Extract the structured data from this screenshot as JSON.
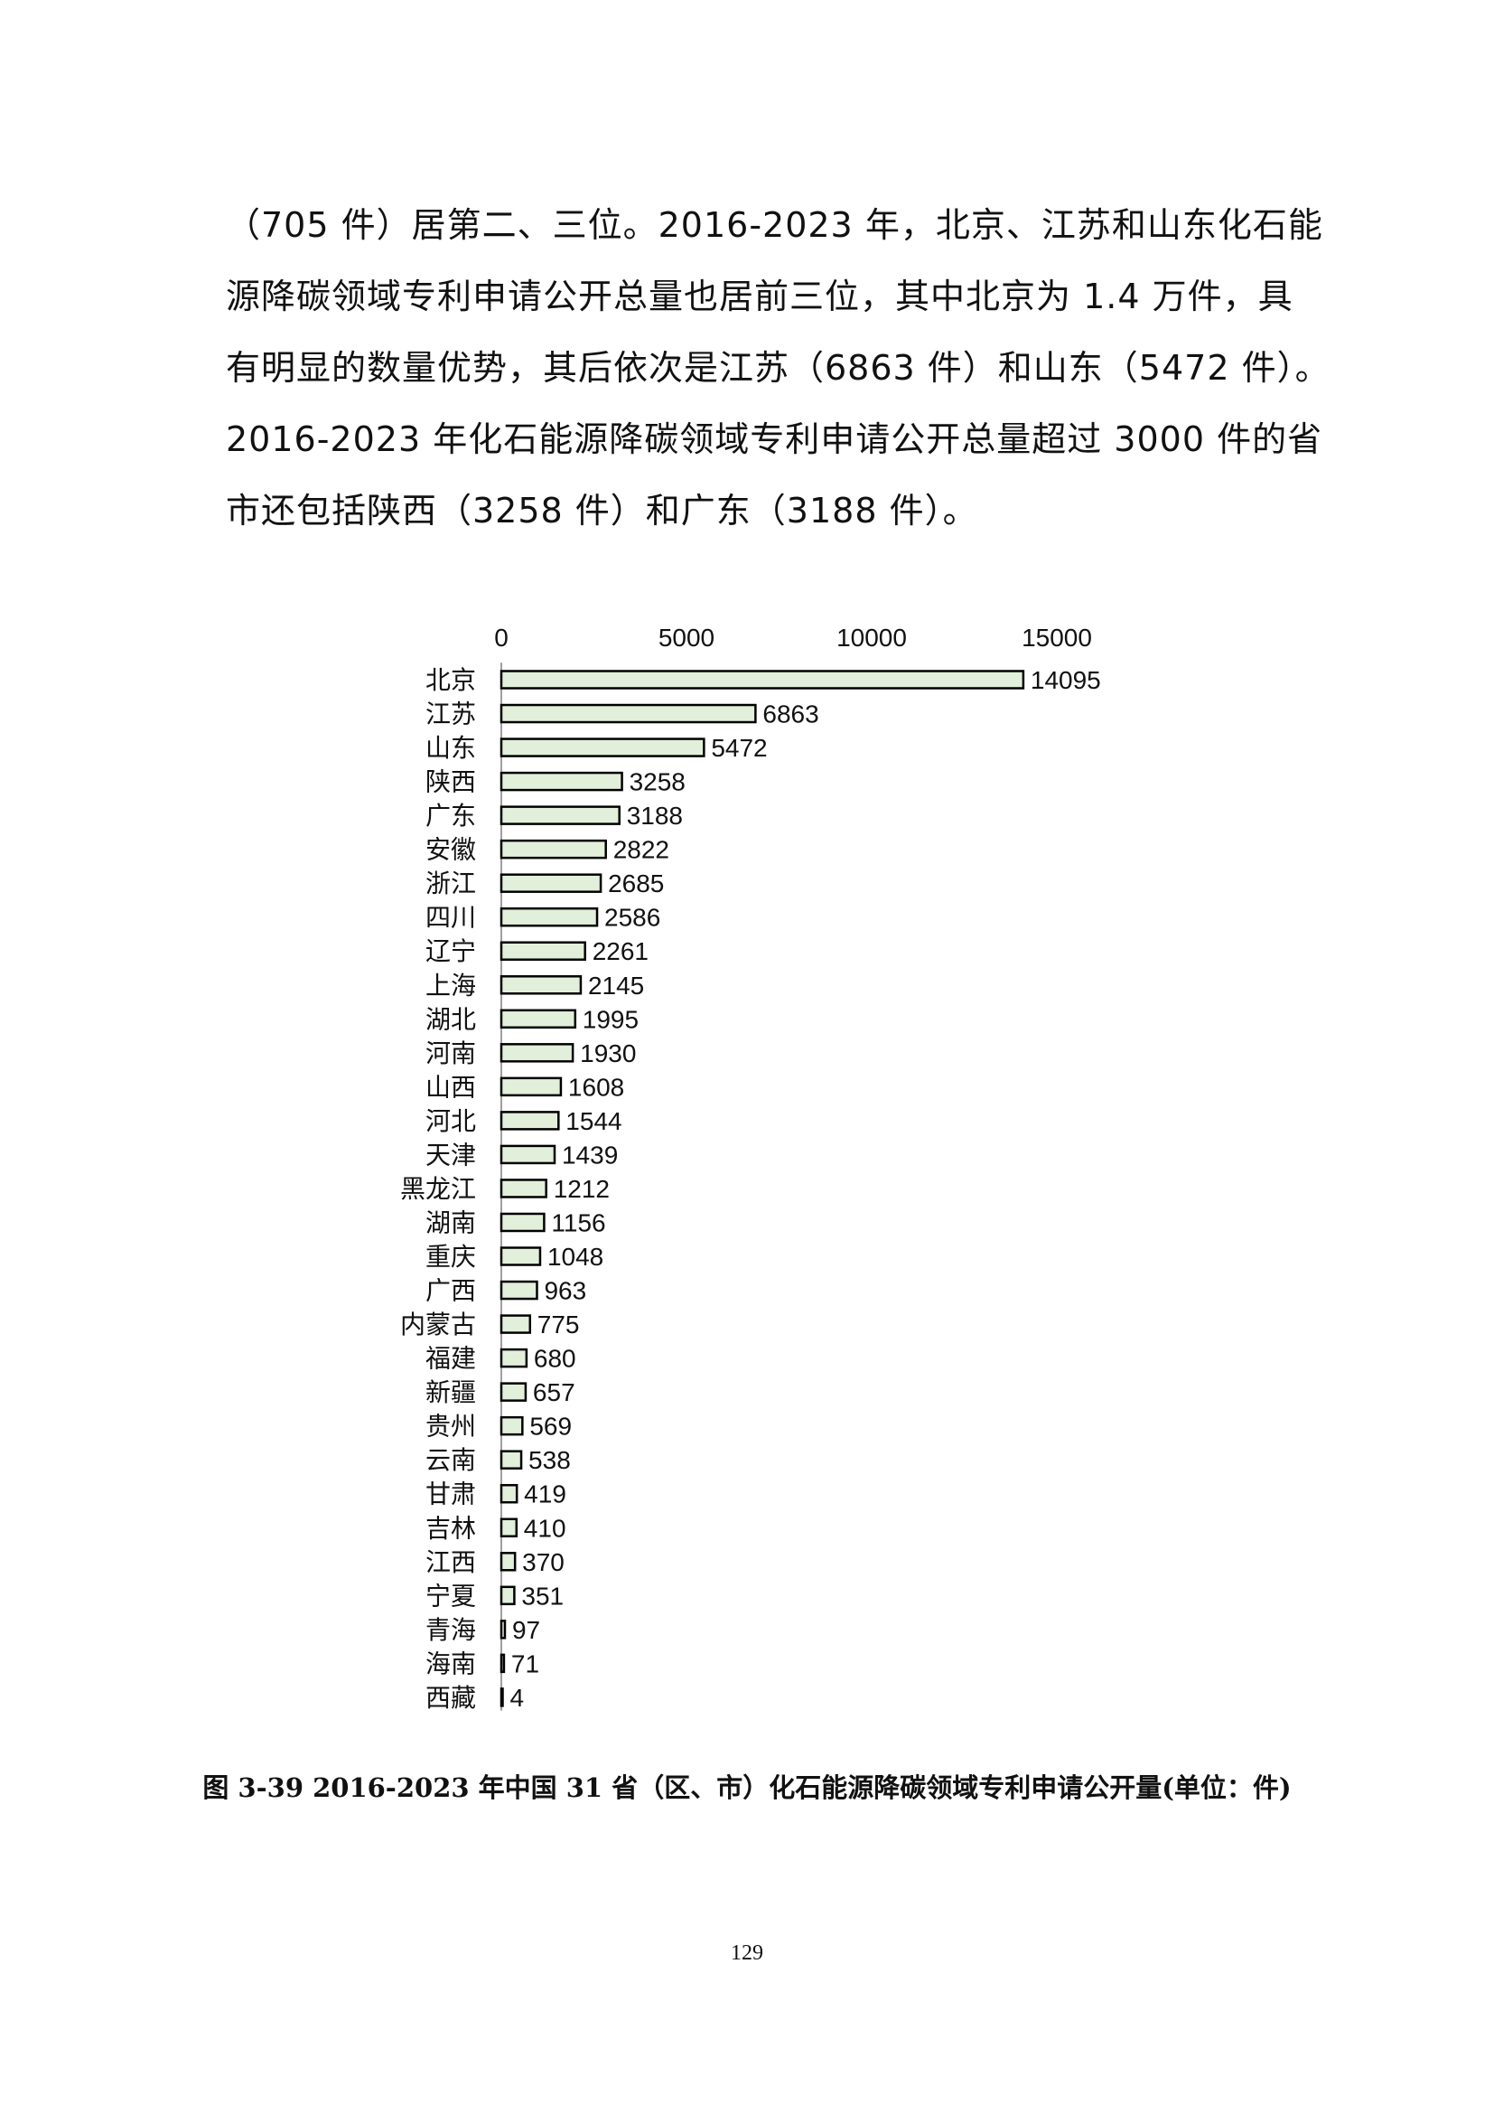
{
  "paragraph": {
    "lines": [
      "（705 件）居第二、三位。2016-2023 年，北京、江苏和山东化石能",
      "源降碳领域专利申请公开总量也居前三位，其中北京为 1.4 万件，具",
      "有明显的数量优势，其后依次是江苏（6863 件）和山东（5472 件）。",
      "2016-2023 年化石能源降碳领域专利申请公开总量超过 3000 件的省",
      "市还包括陕西（3258 件）和广东（3188 件）。"
    ]
  },
  "chart_data": {
    "type": "bar",
    "orientation": "horizontal",
    "axis_position": "top",
    "xlim": [
      0,
      15000
    ],
    "xticks": [
      0,
      5000,
      10000,
      15000
    ],
    "xtick_labels": [
      "0",
      "5000",
      "10000",
      "15000"
    ],
    "bar_color": "#e2efda",
    "bar_edge_color": "#000000",
    "categories": [
      "北京",
      "江苏",
      "山东",
      "陕西",
      "广东",
      "安徽",
      "浙江",
      "四川",
      "辽宁",
      "上海",
      "湖北",
      "河南",
      "山西",
      "河北",
      "天津",
      "黑龙江",
      "湖南",
      "重庆",
      "广西",
      "内蒙古",
      "福建",
      "新疆",
      "贵州",
      "云南",
      "甘肃",
      "吉林",
      "江西",
      "宁夏",
      "青海",
      "海南",
      "西藏"
    ],
    "values": [
      14095,
      6863,
      5472,
      3258,
      3188,
      2822,
      2685,
      2586,
      2261,
      2145,
      1995,
      1930,
      1608,
      1544,
      1439,
      1212,
      1156,
      1048,
      963,
      775,
      680,
      657,
      569,
      538,
      419,
      410,
      370,
      351,
      97,
      71,
      4
    ],
    "value_labels": [
      "14095",
      "6863",
      "5472",
      "3258",
      "3188",
      "2822",
      "2685",
      "2586",
      "2261",
      "2145",
      "1995",
      "1930",
      "1608",
      "1544",
      "1439",
      "1212",
      "1156",
      "1048",
      "963",
      "775",
      "680",
      "657",
      "569",
      "538",
      "419",
      "410",
      "370",
      "351",
      "97",
      "71",
      "4"
    ]
  },
  "caption": "图 3-39 2016-2023 年中国 31 省（区、市）化石能源降碳领域专利申请公开量(单位：件)",
  "page_number": "129"
}
